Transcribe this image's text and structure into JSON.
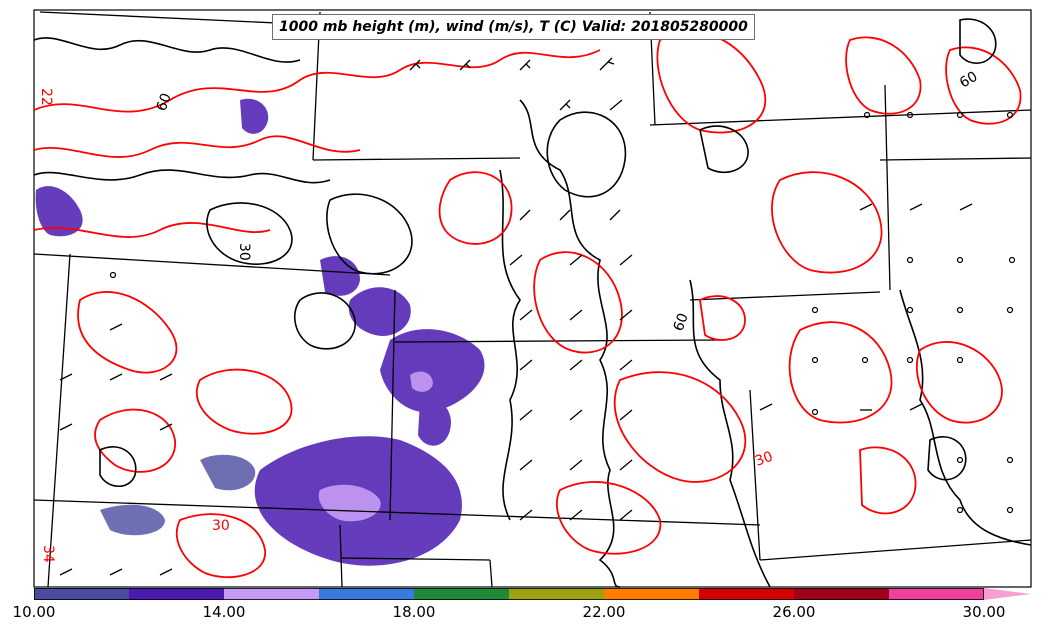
{
  "title": "1000 mb height (m), wind (m/s), T (C) Valid: 201805280000",
  "map": {
    "contour_labels_red": [
      "22",
      "30",
      "30",
      "34"
    ],
    "contour_labels_black": [
      "60",
      "60",
      "30",
      "60"
    ]
  },
  "colorbar": {
    "colors": [
      "#4b4ba0",
      "#4a1ab0",
      "#c59cf5",
      "#3a7ae0",
      "#1f8a3a",
      "#9aa214",
      "#ff7e00",
      "#d40000",
      "#a0001a",
      "#f0409e",
      "#f5a0d0"
    ],
    "tick_labels": [
      "10.00",
      "14.00",
      "18.00",
      "22.00",
      "26.00",
      "30.00"
    ]
  },
  "colors": {
    "temperature_contour": "#ff0000",
    "height_contour": "#000000",
    "boundaries": "#000000"
  }
}
